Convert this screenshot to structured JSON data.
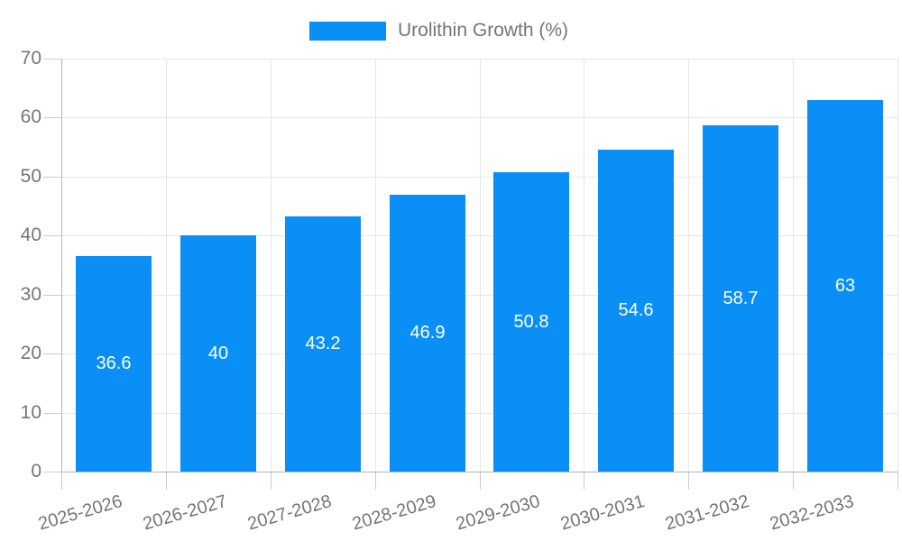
{
  "chart_data": {
    "type": "bar",
    "title": "",
    "legend": {
      "label": "Urolithin Growth (%)",
      "position": "top"
    },
    "categories": [
      "2025-2026",
      "2026-2027",
      "2027-2028",
      "2028-2029",
      "2029-2030",
      "2030-2031",
      "2031-2032",
      "2032-2033"
    ],
    "series": [
      {
        "name": "Urolithin Growth (%)",
        "values": [
          36.6,
          40,
          43.2,
          46.9,
          50.8,
          54.6,
          58.7,
          63
        ],
        "value_labels": [
          "36.6",
          "40",
          "43.2",
          "46.9",
          "50.8",
          "54.6",
          "58.7",
          "63"
        ]
      }
    ],
    "xlabel": "",
    "ylabel": "",
    "ylim": [
      0,
      70
    ],
    "yticks": [
      0,
      10,
      20,
      30,
      40,
      50,
      60,
      70
    ],
    "grid": true,
    "x_label_rotation_deg": -16,
    "colors": {
      "bar": "#0a8ff7",
      "grid": "#e6e6e6",
      "axis": "#b5b5b5",
      "tick": "#cccccc",
      "axis_text": "#757575",
      "value_text": "#ffffff",
      "legend_text": "#757575"
    }
  }
}
